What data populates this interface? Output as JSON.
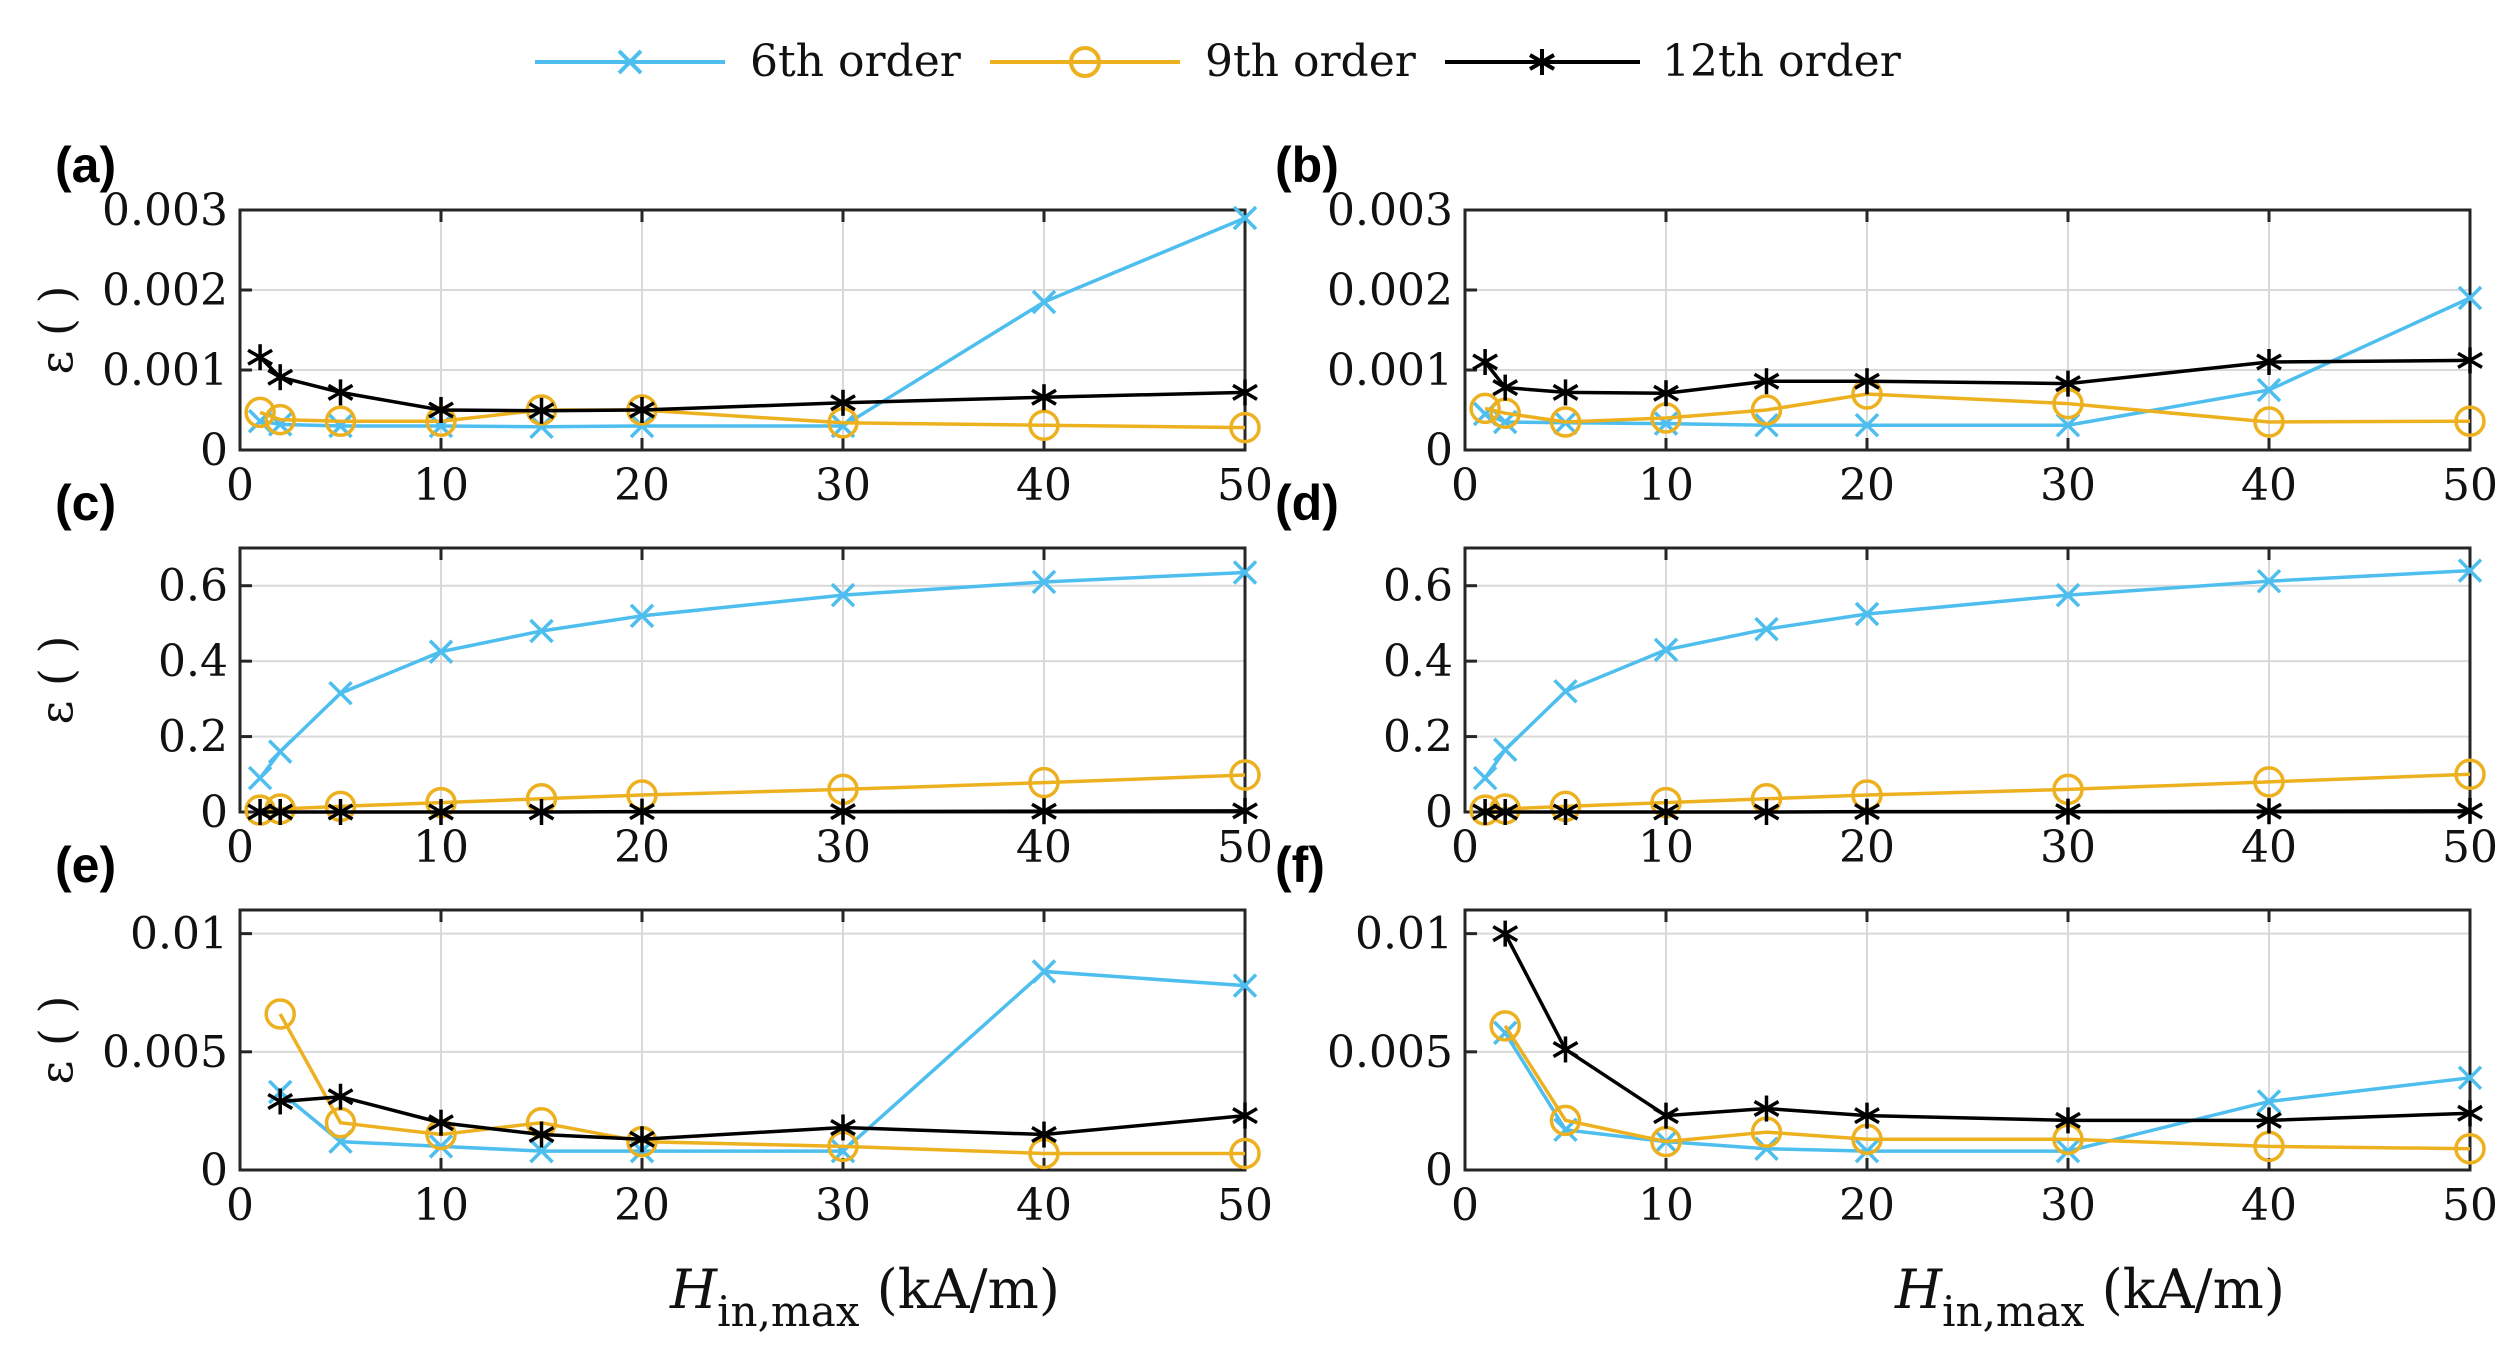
{
  "legend": [
    {
      "label": "6th order",
      "color": "#4DBEEE",
      "marker": "x"
    },
    {
      "label": "9th order",
      "color": "#EDB120",
      "marker": "o"
    },
    {
      "label": "12th order",
      "color": "#000000",
      "marker": "*"
    }
  ],
  "x_axis_title": {
    "main": "H",
    "sub": "in,max",
    "unit": " (kA/m)"
  },
  "chart_data": [
    {
      "type": "line",
      "panel_label": "(a)",
      "ylabel": "ε ( )",
      "xlim": [
        0,
        50
      ],
      "ylim": [
        0,
        0.003
      ],
      "xticks": [
        0,
        10,
        20,
        30,
        40,
        50
      ],
      "yticks": [
        0,
        0.001,
        0.002,
        0.003
      ],
      "ytick_labels": [
        "0",
        "0.001",
        "0.002",
        "0.003"
      ],
      "series": [
        {
          "name": "6th order",
          "x": [
            1,
            2,
            5,
            10,
            15,
            20,
            30,
            40,
            50
          ],
          "y": [
            0.00036,
            0.00032,
            0.0003,
            0.0003,
            0.00029,
            0.0003,
            0.0003,
            0.00185,
            0.0029
          ]
        },
        {
          "name": "9th order",
          "x": [
            1,
            2,
            5,
            10,
            15,
            20,
            30,
            40,
            50
          ],
          "y": [
            0.00047,
            0.00038,
            0.00036,
            0.00036,
            0.0005,
            0.0005,
            0.00034,
            0.00031,
            0.00028
          ]
        },
        {
          "name": "12th order",
          "x": [
            1,
            2,
            5,
            10,
            15,
            20,
            30,
            40,
            50
          ],
          "y": [
            0.00116,
            0.00091,
            0.00072,
            0.0005,
            0.00049,
            0.0005,
            0.00059,
            0.00066,
            0.00072
          ]
        }
      ]
    },
    {
      "type": "line",
      "panel_label": "(b)",
      "ylabel": "",
      "xlim": [
        0,
        50
      ],
      "ylim": [
        0,
        0.003
      ],
      "xticks": [
        0,
        10,
        20,
        30,
        40,
        50
      ],
      "yticks": [
        0,
        0.001,
        0.002,
        0.003
      ],
      "ytick_labels": [
        "0",
        "0.001",
        "0.002",
        "0.003"
      ],
      "series": [
        {
          "name": "6th order",
          "x": [
            1,
            2,
            5,
            10,
            15,
            20,
            30,
            40,
            50
          ],
          "y": [
            0.00045,
            0.00035,
            0.00034,
            0.00033,
            0.00031,
            0.00031,
            0.00031,
            0.00075,
            0.0019
          ]
        },
        {
          "name": "9th order",
          "x": [
            1,
            2,
            5,
            10,
            15,
            20,
            30,
            40,
            50
          ],
          "y": [
            0.00052,
            0.00046,
            0.00035,
            0.0004,
            0.0005,
            0.0007,
            0.00058,
            0.00035,
            0.00036
          ]
        },
        {
          "name": "12th order",
          "x": [
            1,
            2,
            5,
            10,
            15,
            20,
            30,
            40,
            50
          ],
          "y": [
            0.0011,
            0.00078,
            0.00072,
            0.00071,
            0.00086,
            0.00086,
            0.00083,
            0.0011,
            0.00112
          ]
        }
      ]
    },
    {
      "type": "line",
      "panel_label": "(c)",
      "ylabel": "ε ( )",
      "xlim": [
        0,
        50
      ],
      "ylim": [
        0,
        0.7
      ],
      "xticks": [
        0,
        10,
        20,
        30,
        40,
        50
      ],
      "yticks": [
        0,
        0.2,
        0.4,
        0.6
      ],
      "ytick_labels": [
        "0",
        "0.2",
        "0.4",
        "0.6"
      ],
      "series": [
        {
          "name": "6th order",
          "x": [
            1,
            2,
            5,
            10,
            15,
            20,
            30,
            40,
            50
          ],
          "y": [
            0.09,
            0.16,
            0.315,
            0.425,
            0.48,
            0.52,
            0.575,
            0.61,
            0.635
          ]
        },
        {
          "name": "9th order",
          "x": [
            1,
            2,
            5,
            10,
            15,
            20,
            30,
            40,
            50
          ],
          "y": [
            0.005,
            0.008,
            0.015,
            0.025,
            0.035,
            0.045,
            0.06,
            0.078,
            0.098
          ]
        },
        {
          "name": "12th order",
          "x": [
            1,
            2,
            5,
            10,
            15,
            20,
            30,
            40,
            50
          ],
          "y": [
            0.0,
            0.0,
            0.0,
            0.0,
            0.0,
            0.001,
            0.001,
            0.002,
            0.003
          ]
        }
      ]
    },
    {
      "type": "line",
      "panel_label": "(d)",
      "ylabel": "",
      "xlim": [
        0,
        50
      ],
      "ylim": [
        0,
        0.7
      ],
      "xticks": [
        0,
        10,
        20,
        30,
        40,
        50
      ],
      "yticks": [
        0,
        0.2,
        0.4,
        0.6
      ],
      "ytick_labels": [
        "0",
        "0.2",
        "0.4",
        "0.6"
      ],
      "series": [
        {
          "name": "6th order",
          "x": [
            1,
            2,
            5,
            10,
            15,
            20,
            30,
            40,
            50
          ],
          "y": [
            0.09,
            0.165,
            0.32,
            0.43,
            0.485,
            0.525,
            0.575,
            0.612,
            0.64
          ]
        },
        {
          "name": "9th order",
          "x": [
            1,
            2,
            5,
            10,
            15,
            20,
            30,
            40,
            50
          ],
          "y": [
            0.005,
            0.008,
            0.015,
            0.025,
            0.035,
            0.045,
            0.06,
            0.08,
            0.1
          ]
        },
        {
          "name": "12th order",
          "x": [
            1,
            2,
            5,
            10,
            15,
            20,
            30,
            40,
            50
          ],
          "y": [
            0.0,
            0.0,
            0.0,
            0.0,
            0.0,
            0.001,
            0.001,
            0.002,
            0.003
          ]
        }
      ]
    },
    {
      "type": "line",
      "panel_label": "(e)",
      "ylabel": "ε ( )",
      "xlim": [
        0,
        50
      ],
      "ylim": [
        0,
        0.011
      ],
      "xticks": [
        0,
        10,
        20,
        30,
        40,
        50
      ],
      "yticks": [
        0,
        0.005,
        0.01
      ],
      "ytick_labels": [
        "0",
        "0.005",
        "0.01"
      ],
      "series": [
        {
          "name": "6th order",
          "x": [
            2,
            5,
            10,
            15,
            20,
            30,
            40,
            50
          ],
          "y": [
            0.0033,
            0.0012,
            0.001,
            0.0008,
            0.0008,
            0.0008,
            0.0084,
            0.0078
          ]
        },
        {
          "name": "9th order",
          "x": [
            2,
            5,
            10,
            15,
            20,
            30,
            40,
            50
          ],
          "y": [
            0.0066,
            0.002,
            0.0015,
            0.002,
            0.0012,
            0.001,
            0.0007,
            0.0007
          ]
        },
        {
          "name": "12th order",
          "x": [
            2,
            5,
            10,
            15,
            20,
            30,
            40,
            50
          ],
          "y": [
            0.0029,
            0.0031,
            0.002,
            0.0015,
            0.0013,
            0.0018,
            0.0015,
            0.0023
          ]
        }
      ]
    },
    {
      "type": "line",
      "panel_label": "(f)",
      "ylabel": "",
      "xlim": [
        0,
        50
      ],
      "ylim": [
        0,
        0.011
      ],
      "xticks": [
        0,
        10,
        20,
        30,
        40,
        50
      ],
      "yticks": [
        0,
        0.005,
        0.01
      ],
      "ytick_labels": [
        "0",
        "0.005",
        "0.01"
      ],
      "series": [
        {
          "name": "6th order",
          "x": [
            2,
            5,
            10,
            15,
            20,
            30,
            40,
            50
          ],
          "y": [
            0.0058,
            0.0017,
            0.0012,
            0.0009,
            0.0008,
            0.0008,
            0.0029,
            0.0039
          ]
        },
        {
          "name": "9th order",
          "x": [
            2,
            5,
            10,
            15,
            20,
            30,
            40,
            50
          ],
          "y": [
            0.0061,
            0.0021,
            0.0012,
            0.0016,
            0.0013,
            0.0013,
            0.001,
            0.0009
          ]
        },
        {
          "name": "12th order",
          "x": [
            2,
            5,
            10,
            15,
            20,
            30,
            40,
            50
          ],
          "y": [
            0.01,
            0.0051,
            0.0023,
            0.0026,
            0.0023,
            0.0021,
            0.0021,
            0.0024
          ]
        }
      ]
    }
  ]
}
